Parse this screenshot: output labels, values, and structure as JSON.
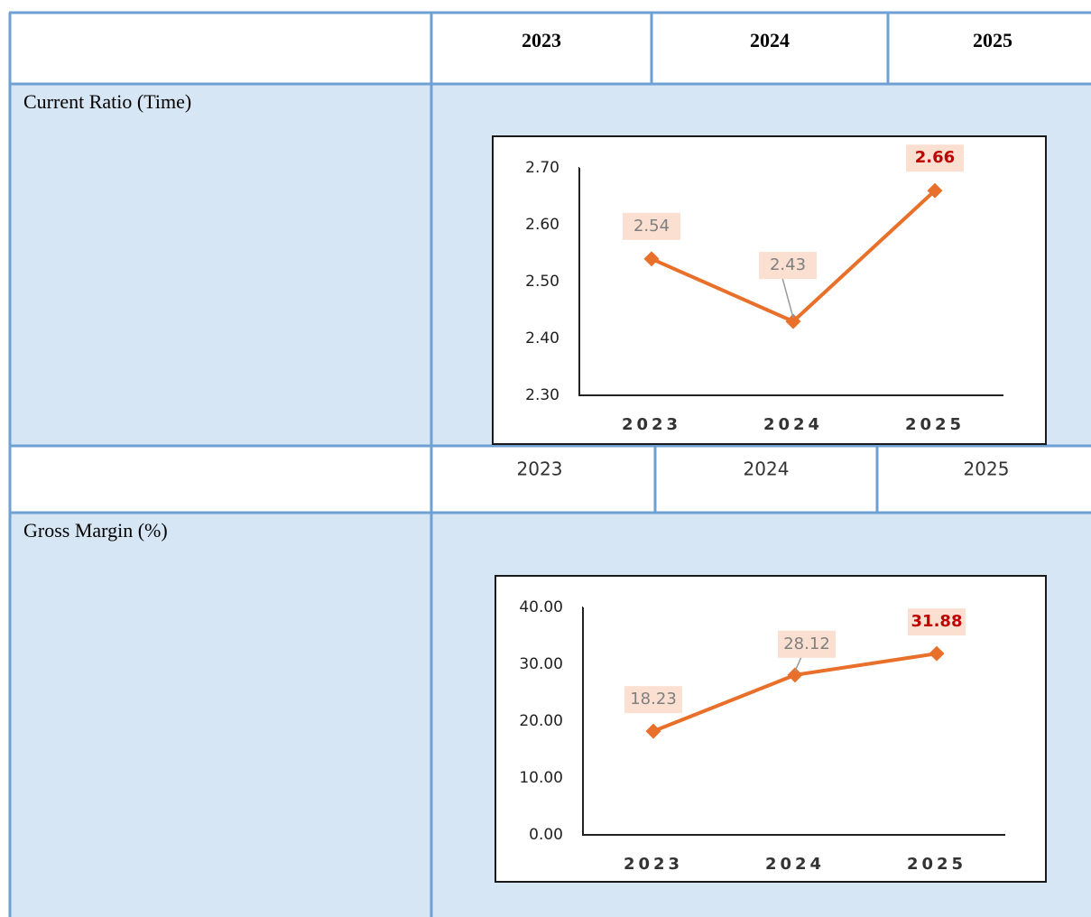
{
  "table": {
    "header": [
      "2023",
      "2024",
      "2025"
    ],
    "rows": [
      {
        "label": "Current Ratio (Time)",
        "chart": {
          "type": "line",
          "categories": [
            "2023",
            "2024",
            "2025"
          ],
          "values": [
            2.54,
            2.43,
            2.66
          ],
          "color": "#e8702a",
          "label_colors": [
            "#7f7f7f",
            "#7f7f7f",
            "#c00000"
          ],
          "ylim": [
            2.3,
            2.7
          ],
          "yticks": [
            {
              "value": 2.3,
              "label": "2.30"
            },
            {
              "value": 2.4,
              "label": "2.40"
            },
            {
              "value": 2.5,
              "label": "2.50"
            },
            {
              "value": 2.6,
              "label": "2.60"
            },
            {
              "value": 2.7,
              "label": "2.70"
            }
          ]
        }
      },
      {
        "cells": [
          "2023",
          "2024",
          "2025"
        ]
      },
      {
        "label": "Gross Margin (%)",
        "chart": {
          "type": "line",
          "categories": [
            "2023",
            "2024",
            "2025"
          ],
          "values": [
            18.23,
            28.12,
            31.88
          ],
          "color": "#e8702a",
          "label_colors": [
            "#7f7f7f",
            "#7f7f7f",
            "#c00000"
          ],
          "ylim": [
            0,
            40
          ],
          "yticks": [
            {
              "value": 0,
              "label": "0.00"
            },
            {
              "value": 10,
              "label": "10.00"
            },
            {
              "value": 20,
              "label": "20.00"
            },
            {
              "value": 30,
              "label": "30.00"
            },
            {
              "value": 40,
              "label": "40.00"
            }
          ]
        }
      }
    ]
  }
}
